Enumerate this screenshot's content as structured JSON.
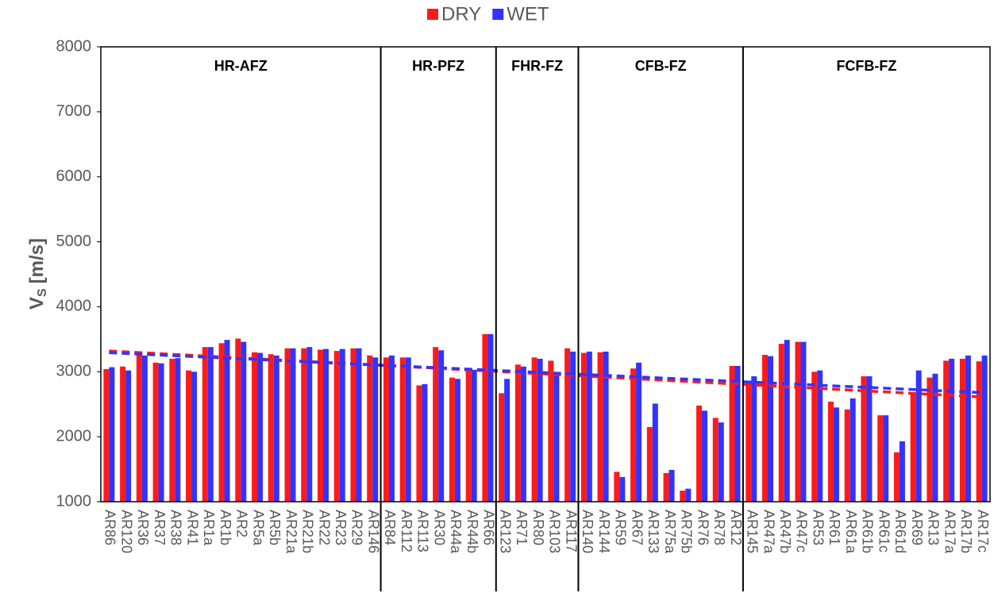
{
  "chart_data": {
    "type": "bar",
    "y_label": "V",
    "y_label_sub": "S",
    "y_label_unit": "[m/s]",
    "ylim": [
      1000,
      8000
    ],
    "yticks": [
      1000,
      2000,
      3000,
      4000,
      5000,
      6000,
      7000,
      8000
    ],
    "legend": "top",
    "trendline": "linear",
    "groups": [
      {
        "label": "HR-AFZ",
        "categories": [
          "AR86",
          "AR120",
          "AR36",
          "AR37",
          "AR38",
          "AR41",
          "AR1a",
          "AR1b",
          "AR2",
          "AR5a",
          "AR5b",
          "AR21a",
          "AR21b",
          "AR22",
          "AR23",
          "AR29",
          "AR146"
        ]
      },
      {
        "label": "HR-PFZ",
        "categories": [
          "AR84",
          "AR112",
          "AR113",
          "AR30",
          "AR44a",
          "AR44b",
          "AR66"
        ]
      },
      {
        "label": "FHR-FZ",
        "categories": [
          "AR123",
          "AR71",
          "AR80",
          "AR103",
          "AR117"
        ]
      },
      {
        "label": "CFB-FZ",
        "categories": [
          "AR140",
          "AR144",
          "AR59",
          "AR67",
          "AR133",
          "AR75a",
          "AR75b",
          "AR76",
          "AR78",
          "AR12"
        ]
      },
      {
        "label": "FCFB-FZ",
        "categories": [
          "AR145",
          "AR47a",
          "AR47b",
          "AR47c",
          "AR53",
          "AR61",
          "AR61a",
          "AR61b",
          "AR61c",
          "AR61d",
          "AR69",
          "AR13",
          "AR17a",
          "AR17b",
          "AR17c"
        ]
      }
    ],
    "series": [
      {
        "name": "DRY",
        "color": "#ff1a1a",
        "values": [
          3040,
          3080,
          3270,
          3140,
          3200,
          3020,
          3380,
          3440,
          3510,
          3300,
          3270,
          3360,
          3360,
          3340,
          3320,
          3360,
          3250,
          3220,
          3220,
          2790,
          3380,
          2910,
          3040,
          3580,
          2670,
          3110,
          3220,
          3170,
          3360,
          3290,
          3300,
          1460,
          3050,
          2150,
          1440,
          1170,
          2480,
          2290,
          3090,
          2860,
          3260,
          3430,
          3460,
          3000,
          2540,
          2420,
          2930,
          2330,
          1760,
          2680,
          2910,
          3170,
          3200,
          3160
        ]
      },
      {
        "name": "WET",
        "color": "#3333ff",
        "values": [
          3070,
          3020,
          3250,
          3130,
          3210,
          3000,
          3380,
          3490,
          3460,
          3290,
          3250,
          3360,
          3380,
          3350,
          3350,
          3360,
          3220,
          3250,
          3220,
          2810,
          3330,
          2890,
          3030,
          3580,
          2890,
          3080,
          3200,
          2960,
          3310,
          3310,
          3310,
          1380,
          3140,
          2510,
          1490,
          1200,
          2400,
          2220,
          3090,
          2930,
          3240,
          3490,
          3460,
          3020,
          2450,
          2590,
          2930,
          2330,
          1930,
          3020,
          2970,
          3200,
          3250,
          3250
        ]
      }
    ]
  }
}
